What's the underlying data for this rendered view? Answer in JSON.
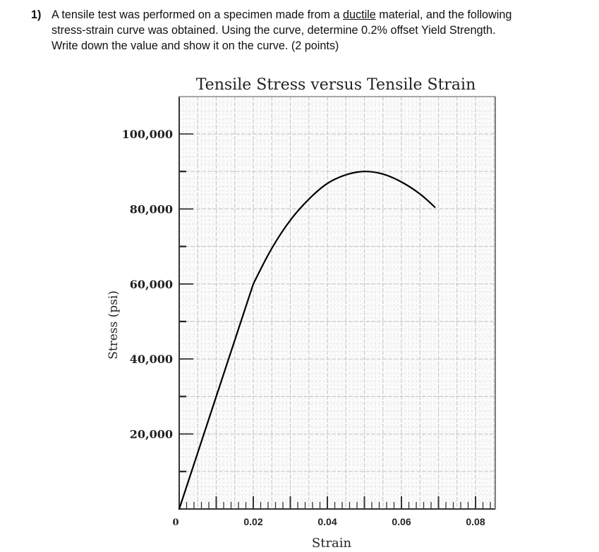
{
  "question": {
    "number": "1)",
    "line1_before": "A tensile test was performed on a specimen made from a ",
    "line1_underlined": "ductile",
    "line1_after": " material, and the following",
    "line2": "stress-strain curve was obtained. Using the curve, determine 0.2% offset Yield Strength.",
    "line3": "Write down the value and show it on the curve. (2 points)"
  },
  "chart_data": {
    "type": "line",
    "title": "Tensile Stress versus Tensile Strain",
    "xlabel": "Strain",
    "ylabel": "Stress (psi)",
    "xlim": [
      0,
      0.085
    ],
    "ylim": [
      0,
      110000
    ],
    "x_ticks": [
      {
        "value": 0,
        "label": "0"
      },
      {
        "value": 0.02,
        "label": "0.02"
      },
      {
        "value": 0.04,
        "label": "0.04"
      },
      {
        "value": 0.06,
        "label": "0.06"
      },
      {
        "value": 0.08,
        "label": "0.08"
      }
    ],
    "y_ticks": [
      {
        "value": 20000,
        "label": "20,000"
      },
      {
        "value": 40000,
        "label": "40,000"
      },
      {
        "value": 60000,
        "label": "60,000"
      },
      {
        "value": 80000,
        "label": "80,000"
      },
      {
        "value": 100000,
        "label": "100,000"
      }
    ],
    "grid": true,
    "series": [
      {
        "points": [
          [
            0,
            0
          ],
          [
            0.005,
            15000
          ],
          [
            0.01,
            30000
          ],
          [
            0.015,
            45000
          ],
          [
            0.02,
            60000
          ],
          [
            0.025,
            69500
          ],
          [
            0.03,
            77000
          ],
          [
            0.035,
            82600
          ],
          [
            0.04,
            86800
          ],
          [
            0.045,
            89100
          ],
          [
            0.05,
            90000
          ],
          [
            0.055,
            89300
          ],
          [
            0.06,
            87200
          ],
          [
            0.065,
            84000
          ],
          [
            0.069,
            80500
          ]
        ]
      }
    ]
  }
}
